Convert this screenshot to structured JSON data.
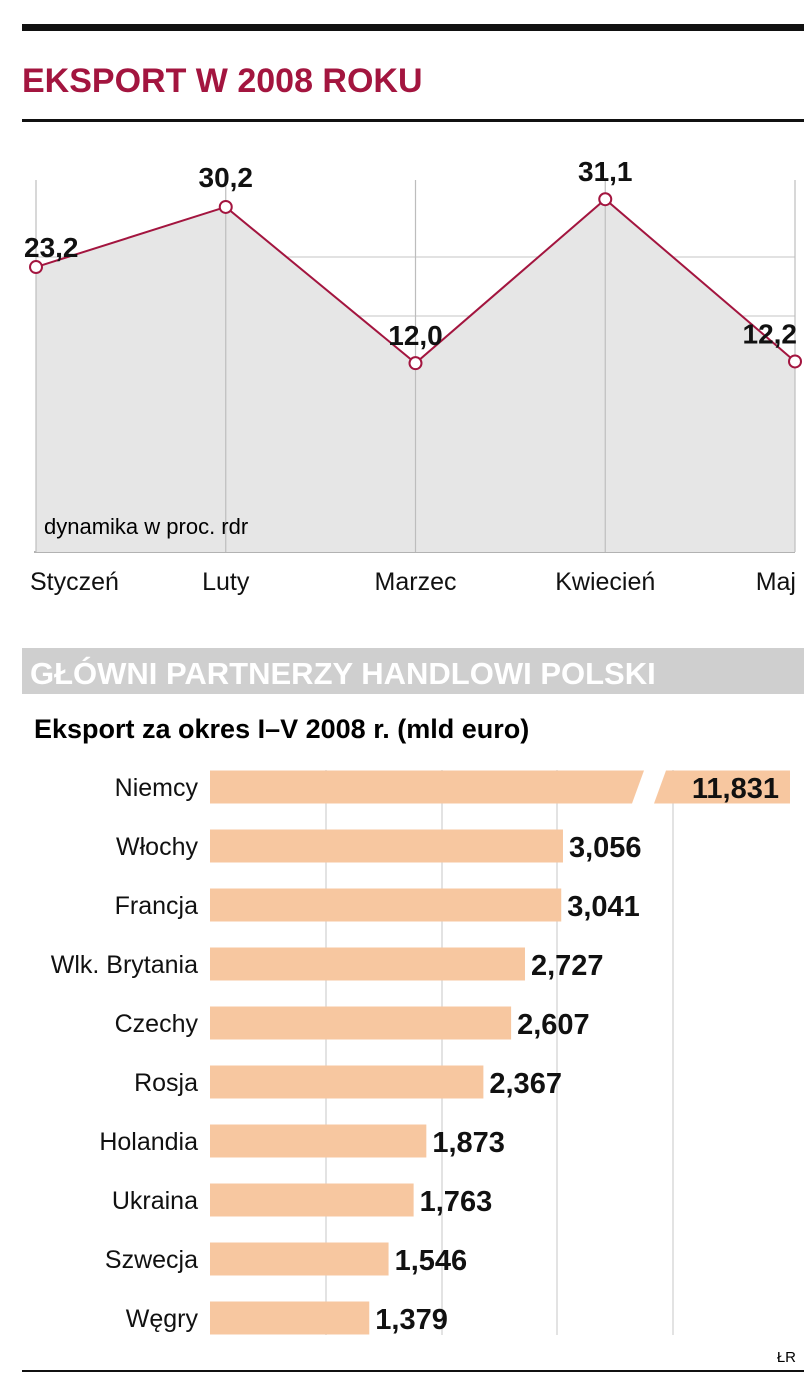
{
  "title": "EKSPORT W 2008 ROKU",
  "colors": {
    "accent": "#a3153f",
    "area": "#e6e6e6",
    "bar": "#f7c7a0",
    "section_band": "#cfcfcf",
    "grid": "#d0d0d0",
    "text": "#111111"
  },
  "chart_data": [
    {
      "type": "line",
      "title": "EKSPORT W 2008 ROKU",
      "ylabel": "dynamika w proc. rdr",
      "categories": [
        "Styczeń",
        "Luty",
        "Marzec",
        "Kwiecień",
        "Maj"
      ],
      "values": [
        23.2,
        30.2,
        12.0,
        31.1,
        12.2
      ],
      "value_labels": [
        "23,2",
        "30,2",
        "12,0",
        "31,1",
        "12,2"
      ],
      "ylim": [
        -10,
        38
      ],
      "grid": true,
      "area_fill": true
    },
    {
      "type": "bar",
      "orientation": "horizontal",
      "section_title": "GŁÓWNI PARTNERZY HANDLOWI POLSKI",
      "title": "Eksport za okres I–V 2008 r. (mld euro)",
      "categories": [
        "Niemcy",
        "Włochy",
        "Francja",
        "Wlk. Brytania",
        "Czechy",
        "Rosja",
        "Holandia",
        "Ukraina",
        "Szwecja",
        "Węgry"
      ],
      "values": [
        11.831,
        3.056,
        3.041,
        2.727,
        2.607,
        2.367,
        1.873,
        1.763,
        1.546,
        1.379
      ],
      "value_labels": [
        "11,831",
        "3,056",
        "3,041",
        "2,727",
        "2,607",
        "2,367",
        "1,873",
        "1,763",
        "1,546",
        "1,379"
      ],
      "broken_bar": "Niemcy",
      "grid": true
    }
  ],
  "credit": "ŁR"
}
